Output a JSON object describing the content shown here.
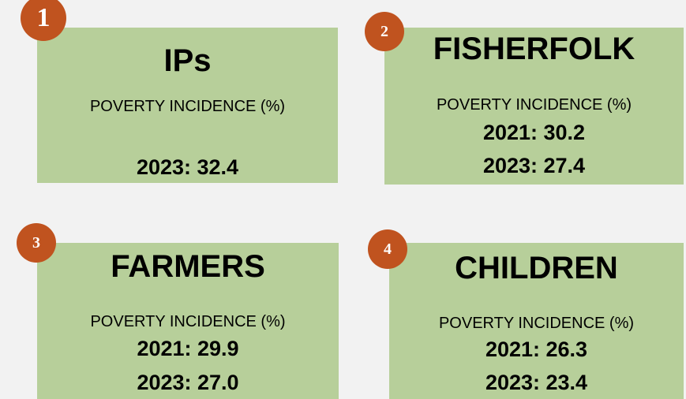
{
  "cards": [
    {
      "badge": "1",
      "title": "IPs",
      "subtitle": "POVERTY INCIDENCE (%)",
      "lines": [
        "2023: 32.4"
      ]
    },
    {
      "badge": "2",
      "title": "FISHERFOLK",
      "subtitle": "POVERTY INCIDENCE (%)",
      "lines": [
        "2021: 30.2",
        "2023: 27.4"
      ]
    },
    {
      "badge": "3",
      "title": "FARMERS",
      "subtitle": "POVERTY INCIDENCE (%)",
      "lines": [
        "2021: 29.9",
        "2023: 27.0"
      ]
    },
    {
      "badge": "4",
      "title": "CHILDREN",
      "subtitle": "POVERTY INCIDENCE (%)",
      "lines": [
        "2021: 26.3",
        "2023: 23.4"
      ]
    }
  ]
}
